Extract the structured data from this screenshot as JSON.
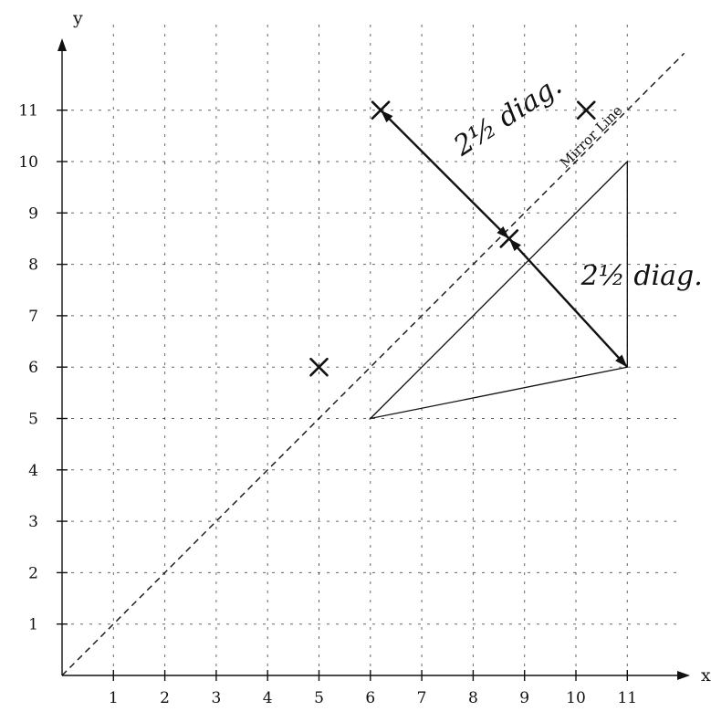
{
  "axes": {
    "x_label": "x",
    "y_label": "y",
    "x_ticks": [
      "1",
      "2",
      "3",
      "4",
      "5",
      "6",
      "7",
      "8",
      "9",
      "10",
      "11"
    ],
    "y_ticks": [
      "1",
      "2",
      "3",
      "4",
      "5",
      "6",
      "7",
      "8",
      "9",
      "10",
      "11"
    ],
    "x_range": [
      0,
      12
    ],
    "y_range": [
      0,
      12
    ]
  },
  "mirror_line": {
    "label": "Mirror Line",
    "from": [
      0,
      0
    ],
    "to": [
      12,
      12
    ]
  },
  "triangle": {
    "vertices": [
      [
        6,
        5
      ],
      [
        11,
        10
      ],
      [
        11,
        6
      ]
    ]
  },
  "crosses": [
    {
      "x": 6.2,
      "y": 11
    },
    {
      "x": 5,
      "y": 6
    },
    {
      "x": 10.2,
      "y": 11
    },
    {
      "x": 8.7,
      "y": 8.5
    }
  ],
  "arrows": [
    {
      "from": [
        6.2,
        11
      ],
      "to": [
        8.7,
        8.5
      ],
      "label": "2½ diag."
    },
    {
      "from": [
        8.7,
        8.5
      ],
      "to": [
        11,
        6
      ],
      "label": "2½ diag."
    }
  ],
  "colors": {
    "ink": "#111111",
    "background": "#ffffff"
  }
}
